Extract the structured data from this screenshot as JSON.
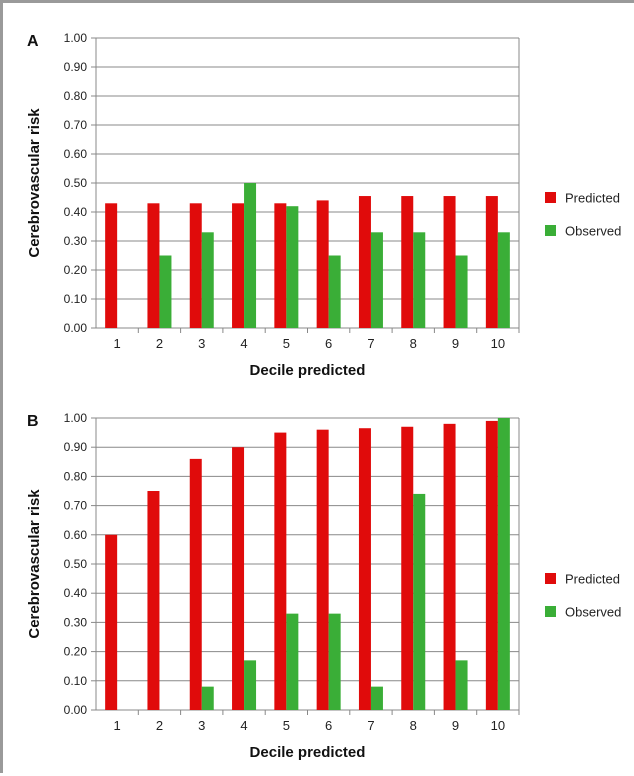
{
  "colors": {
    "predicted": "#e00b0b",
    "observed": "#3aae37",
    "axis": "#888888",
    "grid": "#888888"
  },
  "chart_data": [
    {
      "type": "bar",
      "panel_label": "A",
      "xlabel": "Decile predicted",
      "ylabel": "Cerebrovascular risk",
      "ylim": [
        0,
        1
      ],
      "yticks": [
        "0.00",
        "0.10",
        "0.20",
        "0.30",
        "0.40",
        "0.50",
        "0.60",
        "0.70",
        "0.80",
        "0.90",
        "1.00"
      ],
      "categories": [
        "1",
        "2",
        "3",
        "4",
        "5",
        "6",
        "7",
        "8",
        "9",
        "10"
      ],
      "grid": true,
      "legend": "right",
      "series": [
        {
          "name": "Predicted",
          "values": [
            0.43,
            0.43,
            0.43,
            0.43,
            0.43,
            0.44,
            0.455,
            0.455,
            0.455,
            0.455
          ]
        },
        {
          "name": "Observed",
          "values": [
            0.0,
            0.25,
            0.33,
            0.5,
            0.42,
            0.25,
            0.33,
            0.33,
            0.25,
            0.33
          ]
        }
      ]
    },
    {
      "type": "bar",
      "panel_label": "B",
      "xlabel": "Decile predicted",
      "ylabel": "Cerebrovascular risk",
      "ylim": [
        0,
        1
      ],
      "yticks": [
        "0.00",
        "0.10",
        "0.20",
        "0.30",
        "0.40",
        "0.50",
        "0.60",
        "0.70",
        "0.80",
        "0.90",
        "1.00"
      ],
      "categories": [
        "1",
        "2",
        "3",
        "4",
        "5",
        "6",
        "7",
        "8",
        "9",
        "10"
      ],
      "grid": true,
      "legend": "right",
      "series": [
        {
          "name": "Predicted",
          "values": [
            0.6,
            0.75,
            0.86,
            0.9,
            0.95,
            0.96,
            0.965,
            0.97,
            0.98,
            0.99
          ]
        },
        {
          "name": "Observed",
          "values": [
            0.0,
            0.0,
            0.08,
            0.17,
            0.33,
            0.33,
            0.08,
            0.74,
            0.17,
            1.0
          ]
        }
      ]
    }
  ]
}
